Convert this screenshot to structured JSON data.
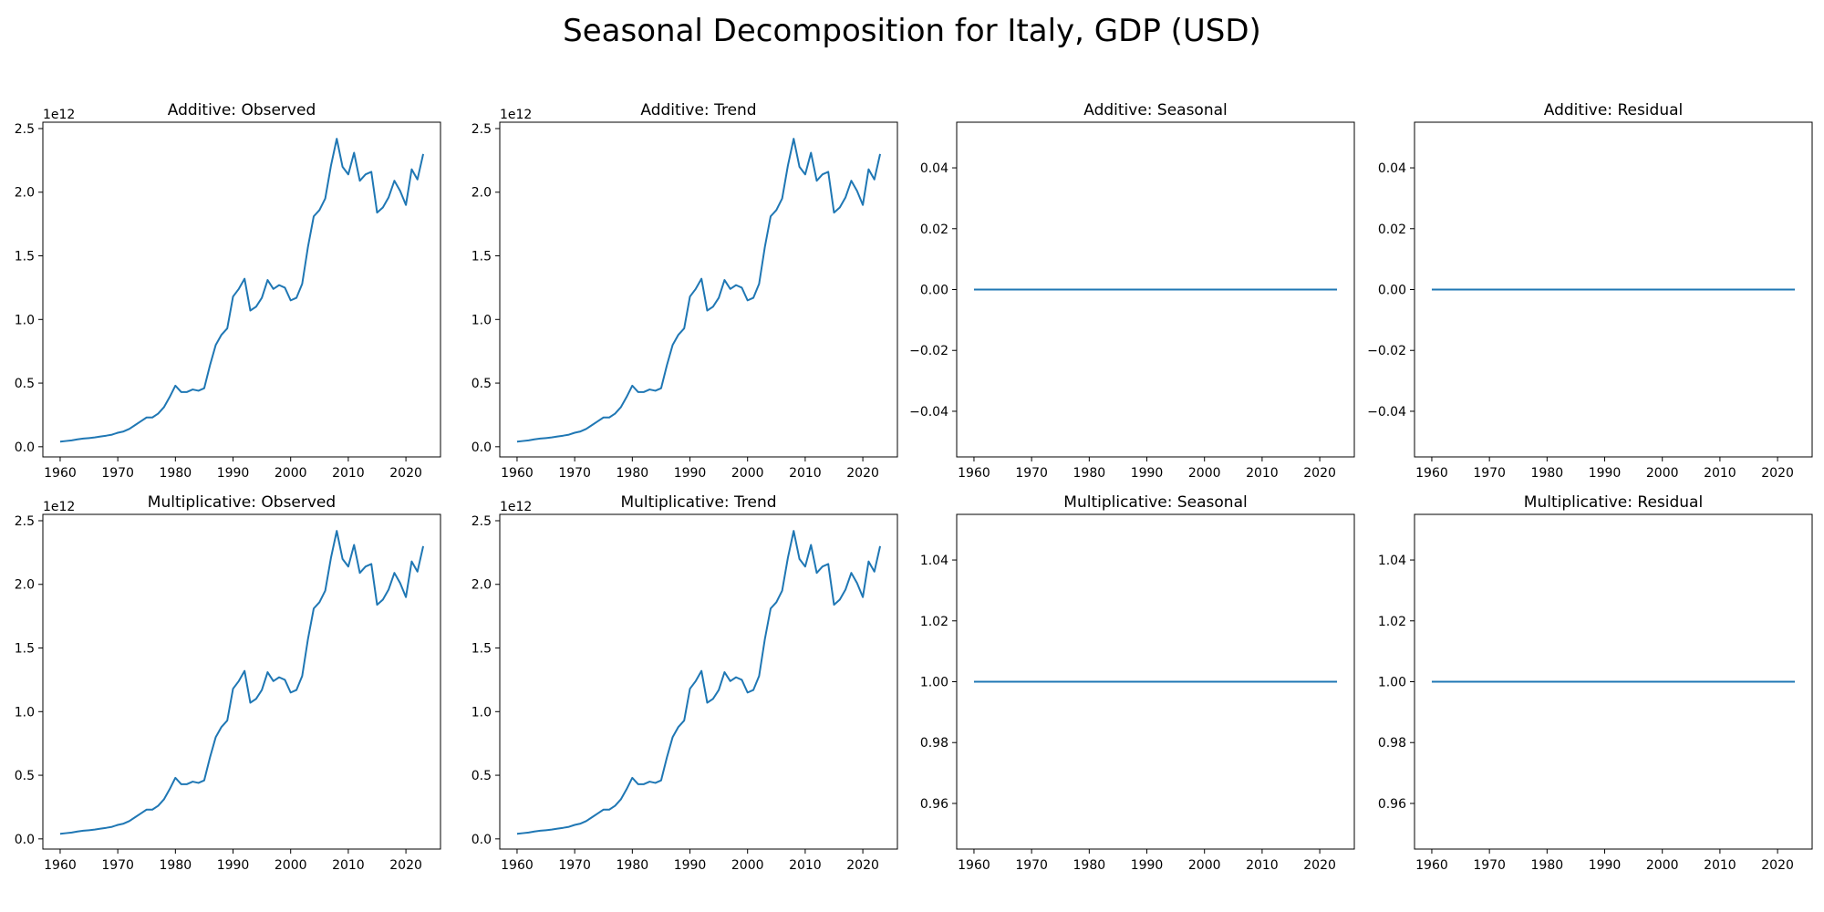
{
  "figure": {
    "title": "Seasonal Decomposition for Italy, GDP (USD)"
  },
  "chart_data": [
    {
      "type": "line",
      "title": "Additive: Observed",
      "xlabel": "",
      "ylabel": "",
      "y_offset_label": "1e12",
      "x_ticks": [
        "1960",
        "1970",
        "1980",
        "1990",
        "2000",
        "2010",
        "2020"
      ],
      "y_ticks": [
        "0.0",
        "0.5",
        "1.0",
        "1.5",
        "2.0",
        "2.5"
      ],
      "xlim": [
        1957,
        2026
      ],
      "ylim": [
        -0.08,
        2.55
      ],
      "grid": false,
      "color": "#1f77b4",
      "series": [
        {
          "x": "shared:years",
          "y": "shared:gdp"
        }
      ]
    },
    {
      "type": "line",
      "title": "Additive: Trend",
      "xlabel": "",
      "ylabel": "",
      "y_offset_label": "1e12",
      "x_ticks": [
        "1960",
        "1970",
        "1980",
        "1990",
        "2000",
        "2010",
        "2020"
      ],
      "y_ticks": [
        "0.0",
        "0.5",
        "1.0",
        "1.5",
        "2.0",
        "2.5"
      ],
      "xlim": [
        1957,
        2026
      ],
      "ylim": [
        -0.08,
        2.55
      ],
      "grid": false,
      "color": "#1f77b4",
      "series": [
        {
          "x": "shared:years",
          "y": "shared:gdp"
        }
      ]
    },
    {
      "type": "line",
      "title": "Additive: Seasonal",
      "xlabel": "",
      "ylabel": "",
      "y_offset_label": "",
      "x_ticks": [
        "1960",
        "1970",
        "1980",
        "1990",
        "2000",
        "2010",
        "2020"
      ],
      "y_ticks": [
        "−0.04",
        "−0.02",
        "0.00",
        "0.02",
        "0.04"
      ],
      "xlim": [
        1957,
        2026
      ],
      "ylim": [
        -0.055,
        0.055
      ],
      "grid": false,
      "color": "#1f77b4",
      "series": [
        {
          "x": [
            1960,
            2023
          ],
          "y": [
            0,
            0
          ]
        }
      ]
    },
    {
      "type": "line",
      "title": "Additive: Residual",
      "xlabel": "",
      "ylabel": "",
      "y_offset_label": "",
      "x_ticks": [
        "1960",
        "1970",
        "1980",
        "1990",
        "2000",
        "2010",
        "2020"
      ],
      "y_ticks": [
        "−0.04",
        "−0.02",
        "0.00",
        "0.02",
        "0.04"
      ],
      "xlim": [
        1957,
        2026
      ],
      "ylim": [
        -0.055,
        0.055
      ],
      "grid": false,
      "color": "#1f77b4",
      "series": [
        {
          "x": [
            1960,
            2023
          ],
          "y": [
            0,
            0
          ]
        }
      ]
    },
    {
      "type": "line",
      "title": "Multiplicative: Observed",
      "xlabel": "",
      "ylabel": "",
      "y_offset_label": "1e12",
      "x_ticks": [
        "1960",
        "1970",
        "1980",
        "1990",
        "2000",
        "2010",
        "2020"
      ],
      "y_ticks": [
        "0.0",
        "0.5",
        "1.0",
        "1.5",
        "2.0",
        "2.5"
      ],
      "xlim": [
        1957,
        2026
      ],
      "ylim": [
        -0.08,
        2.55
      ],
      "grid": false,
      "color": "#1f77b4",
      "series": [
        {
          "x": "shared:years",
          "y": "shared:gdp"
        }
      ]
    },
    {
      "type": "line",
      "title": "Multiplicative: Trend",
      "xlabel": "",
      "ylabel": "",
      "y_offset_label": "1e12",
      "x_ticks": [
        "1960",
        "1970",
        "1980",
        "1990",
        "2000",
        "2010",
        "2020"
      ],
      "y_ticks": [
        "0.0",
        "0.5",
        "1.0",
        "1.5",
        "2.0",
        "2.5"
      ],
      "xlim": [
        1957,
        2026
      ],
      "ylim": [
        -0.08,
        2.55
      ],
      "grid": false,
      "color": "#1f77b4",
      "series": [
        {
          "x": "shared:years",
          "y": "shared:gdp"
        }
      ]
    },
    {
      "type": "line",
      "title": "Multiplicative: Seasonal",
      "xlabel": "",
      "ylabel": "",
      "y_offset_label": "",
      "x_ticks": [
        "1960",
        "1970",
        "1980",
        "1990",
        "2000",
        "2010",
        "2020"
      ],
      "y_ticks": [
        "0.96",
        "0.98",
        "1.00",
        "1.02",
        "1.04"
      ],
      "xlim": [
        1957,
        2026
      ],
      "ylim": [
        0.945,
        1.055
      ],
      "grid": false,
      "color": "#1f77b4",
      "series": [
        {
          "x": [
            1960,
            2023
          ],
          "y": [
            1,
            1
          ]
        }
      ]
    },
    {
      "type": "line",
      "title": "Multiplicative: Residual",
      "xlabel": "",
      "ylabel": "",
      "y_offset_label": "",
      "x_ticks": [
        "1960",
        "1970",
        "1980",
        "1990",
        "2000",
        "2010",
        "2020"
      ],
      "y_ticks": [
        "0.96",
        "0.98",
        "1.00",
        "1.02",
        "1.04"
      ],
      "xlim": [
        1957,
        2026
      ],
      "ylim": [
        0.945,
        1.055
      ],
      "grid": false,
      "color": "#1f77b4",
      "series": [
        {
          "x": [
            1960,
            2023
          ],
          "y": [
            1,
            1
          ]
        }
      ]
    }
  ],
  "shared_series": {
    "years": [
      1960,
      1961,
      1962,
      1963,
      1964,
      1965,
      1966,
      1967,
      1968,
      1969,
      1970,
      1971,
      1972,
      1973,
      1974,
      1975,
      1976,
      1977,
      1978,
      1979,
      1980,
      1981,
      1982,
      1983,
      1984,
      1985,
      1986,
      1987,
      1988,
      1989,
      1990,
      1991,
      1992,
      1993,
      1994,
      1995,
      1996,
      1997,
      1998,
      1999,
      2000,
      2001,
      2002,
      2003,
      2004,
      2005,
      2006,
      2007,
      2008,
      2009,
      2010,
      2011,
      2012,
      2013,
      2014,
      2015,
      2016,
      2017,
      2018,
      2019,
      2020,
      2021,
      2022,
      2023
    ],
    "gdp": [
      0.04,
      0.045,
      0.05,
      0.058,
      0.064,
      0.068,
      0.073,
      0.08,
      0.087,
      0.095,
      0.11,
      0.12,
      0.14,
      0.17,
      0.2,
      0.23,
      0.23,
      0.26,
      0.31,
      0.39,
      0.48,
      0.43,
      0.43,
      0.45,
      0.44,
      0.46,
      0.64,
      0.8,
      0.88,
      0.93,
      1.18,
      1.24,
      1.32,
      1.07,
      1.1,
      1.17,
      1.31,
      1.24,
      1.27,
      1.25,
      1.15,
      1.17,
      1.28,
      1.57,
      1.81,
      1.86,
      1.95,
      2.21,
      2.42,
      2.2,
      2.14,
      2.31,
      2.09,
      2.14,
      2.16,
      1.84,
      1.88,
      1.96,
      2.09,
      2.01,
      1.9,
      2.18,
      2.1,
      2.3
    ]
  }
}
